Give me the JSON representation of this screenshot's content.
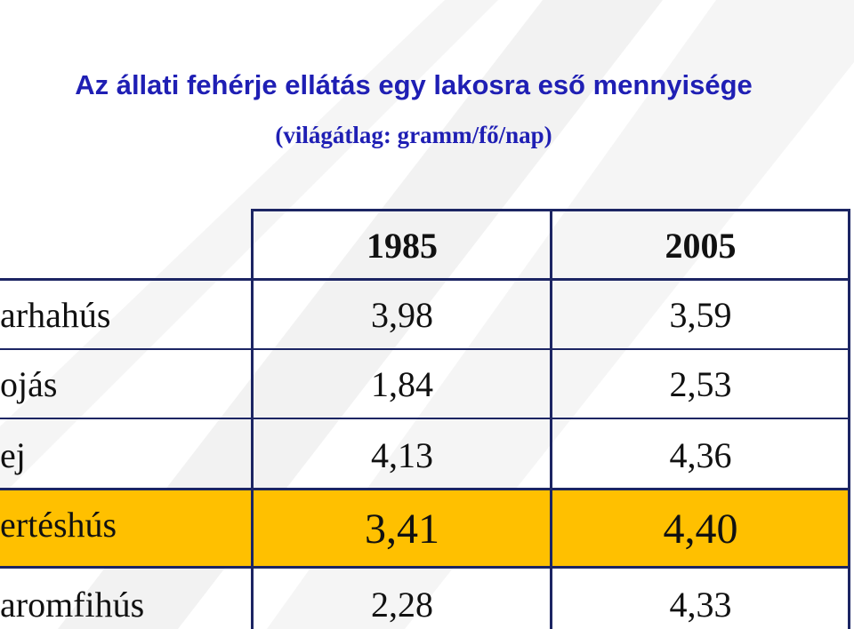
{
  "title": "Az állati fehérje ellátás egy lakosra eső mennyisége",
  "subtitle": "(világátlag: gramm/fő/nap)",
  "colors": {
    "title": "#1f1fb4",
    "border": "#1c2563",
    "highlight": "#ffc000",
    "watermark": "#e9e9e9"
  },
  "chart_data": {
    "type": "table",
    "title": "Az állati fehérje ellátás egy lakosra eső mennyisége",
    "subtitle": "(világátlag: gramm/fő/nap)",
    "columns": [
      "",
      "1985",
      "2005"
    ],
    "rows": [
      {
        "label": "arhahús",
        "values": [
          "3,98",
          "3,59"
        ],
        "highlighted": false
      },
      {
        "label": "ojás",
        "values": [
          "1,84",
          "2,53"
        ],
        "highlighted": false
      },
      {
        "label": "ej",
        "values": [
          "4,13",
          "4,36"
        ],
        "highlighted": false
      },
      {
        "label": "ertéshús",
        "values": [
          "3,41",
          "4,40"
        ],
        "highlighted": true
      },
      {
        "label": "aromfihús",
        "values": [
          "2,28",
          "4,33"
        ],
        "highlighted": false
      }
    ]
  }
}
